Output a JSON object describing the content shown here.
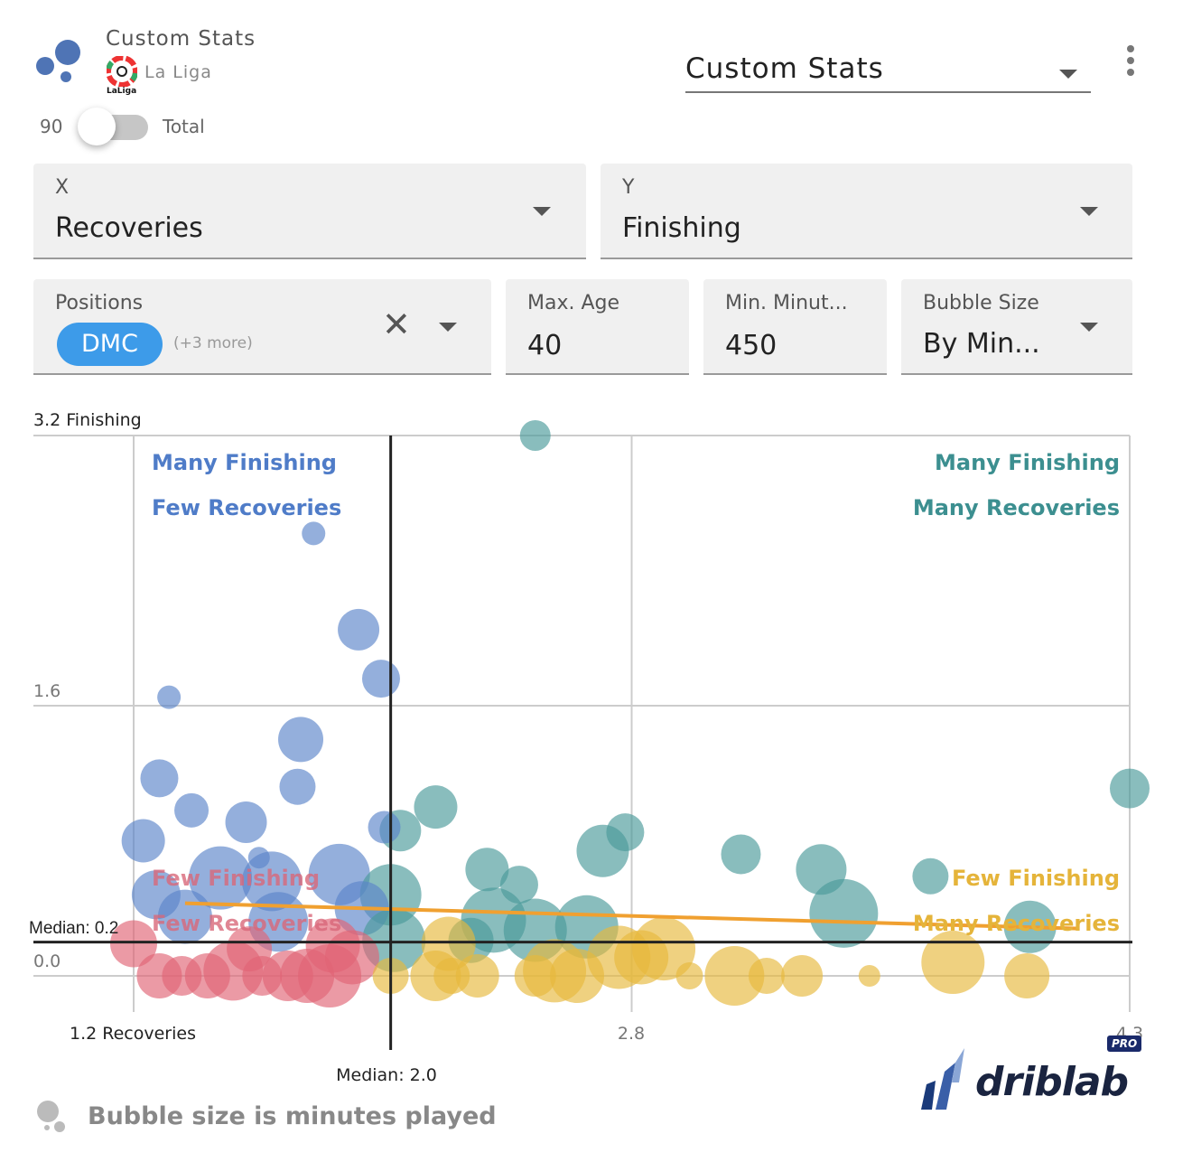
{
  "header": {
    "title": "Custom Stats",
    "league": "La Liga",
    "league_logo_text": "LaLiga",
    "toggle_left": "90",
    "toggle_right": "Total",
    "toggle_on": false,
    "stat_select": "Custom Stats"
  },
  "filters": {
    "x_label": "X",
    "x_value": "Recoveries",
    "y_label": "Y",
    "y_value": "Finishing",
    "positions_label": "Positions",
    "positions_chip": "DMC",
    "positions_more": "(+3 more)",
    "max_age_label": "Max. Age",
    "max_age_value": "40",
    "min_minutes_label": "Min. Minut...",
    "min_minutes_value": "450",
    "bubble_label": "Bubble Size",
    "bubble_value": "By Min..."
  },
  "footer": {
    "note": "Bubble size is minutes played",
    "brand": "driblab",
    "badge": "PRO"
  },
  "colors": {
    "blue": "#5b84c9",
    "teal": "#4a9a9a",
    "yellow": "#e6b93c",
    "red": "#e06475",
    "trend": "#f0a030"
  },
  "chart_data": {
    "type": "scatter",
    "xlim": [
      1.2,
      4.3
    ],
    "ylim": [
      0.0,
      3.2
    ],
    "x_ticks": [
      "1.2 Recoveries",
      "2.8",
      "4.3"
    ],
    "y_ticks": [
      "3.2 Finishing",
      "1.6",
      "0.0"
    ],
    "x_median": 2.0,
    "y_median": 0.2,
    "x_median_label": "Median: 2.0",
    "y_median_label": "Median: 0.2",
    "quadrants": {
      "top_left": [
        "Many Finishing",
        "Few Recoveries"
      ],
      "top_right": [
        "Many Finishing",
        "Many Recoveries"
      ],
      "bottom_left": [
        "Few Finishing",
        "Few Recoveries"
      ],
      "bottom_right": [
        "Few Finishing",
        "Many Recoveries"
      ]
    },
    "trend": [
      [
        1.36,
        0.43
      ],
      [
        4.14,
        0.28
      ]
    ],
    "points": [
      [
        2.45,
        3.2,
        880
      ],
      [
        1.76,
        2.62,
        560
      ],
      [
        1.9,
        2.05,
        1360
      ],
      [
        1.97,
        1.76,
        1200
      ],
      [
        1.31,
        1.65,
        560
      ],
      [
        1.72,
        1.4,
        1520
      ],
      [
        1.28,
        1.17,
        1200
      ],
      [
        1.71,
        1.12,
        1120
      ],
      [
        1.38,
        0.98,
        1040
      ],
      [
        1.55,
        0.91,
        1360
      ],
      [
        1.23,
        0.8,
        1440
      ],
      [
        2.14,
        1.0,
        1440
      ],
      [
        2.03,
        0.86,
        1360
      ],
      [
        1.98,
        0.88,
        960
      ],
      [
        2.73,
        0.85,
        1200
      ],
      [
        2.66,
        0.74,
        1840
      ],
      [
        3.09,
        0.72,
        1280
      ],
      [
        3.34,
        0.63,
        1760
      ],
      [
        3.41,
        0.37,
        2560
      ],
      [
        3.68,
        0.59,
        1120
      ],
      [
        4.3,
        1.11,
        1280
      ],
      [
        3.99,
        0.29,
        1840
      ],
      [
        2.3,
        0.63,
        1440
      ],
      [
        2.4,
        0.54,
        1200
      ],
      [
        1.84,
        0.6,
        2240
      ],
      [
        1.47,
        0.58,
        2320
      ],
      [
        1.63,
        0.56,
        2160
      ],
      [
        1.59,
        0.7,
        480
      ],
      [
        1.27,
        0.48,
        1680
      ],
      [
        2.0,
        0.48,
        2240
      ],
      [
        1.91,
        0.4,
        1920
      ],
      [
        1.36,
        0.35,
        1920
      ],
      [
        1.65,
        0.32,
        2160
      ],
      [
        2.32,
        0.33,
        2400
      ],
      [
        2.45,
        0.27,
        2320
      ],
      [
        2.61,
        0.29,
        2320
      ],
      [
        2.25,
        0.21,
        1520
      ],
      [
        2.01,
        0.21,
        2320
      ],
      [
        1.2,
        0.19,
        1600
      ],
      [
        1.28,
        0.0,
        1520
      ],
      [
        1.35,
        0.0,
        1280
      ],
      [
        1.43,
        0.0,
        1520
      ],
      [
        1.51,
        0.03,
        2160
      ],
      [
        1.6,
        0.0,
        1280
      ],
      [
        1.68,
        0.0,
        1760
      ],
      [
        1.74,
        0.0,
        1920
      ],
      [
        1.81,
        0.0,
        2320
      ],
      [
        1.88,
        0.11,
        1920
      ],
      [
        1.82,
        0.18,
        1920
      ],
      [
        1.56,
        0.16,
        1520
      ],
      [
        2.0,
        0.0,
        1120
      ],
      [
        2.14,
        0.0,
        1760
      ],
      [
        2.19,
        0.0,
        1120
      ],
      [
        2.27,
        0.0,
        1440
      ],
      [
        2.18,
        0.19,
        1920
      ],
      [
        2.45,
        0.0,
        1360
      ],
      [
        2.51,
        0.03,
        2320
      ],
      [
        2.58,
        0.0,
        1920
      ],
      [
        2.71,
        0.11,
        2320
      ],
      [
        2.78,
        0.11,
        1920
      ],
      [
        2.85,
        0.16,
        2320
      ],
      [
        2.93,
        0.0,
        720
      ],
      [
        3.07,
        0.0,
        2160
      ],
      [
        3.17,
        0.0,
        1120
      ],
      [
        3.28,
        0.0,
        1360
      ],
      [
        3.49,
        0.0,
        480
      ],
      [
        3.75,
        0.08,
        2320
      ],
      [
        3.98,
        0.0,
        1520
      ]
    ]
  }
}
